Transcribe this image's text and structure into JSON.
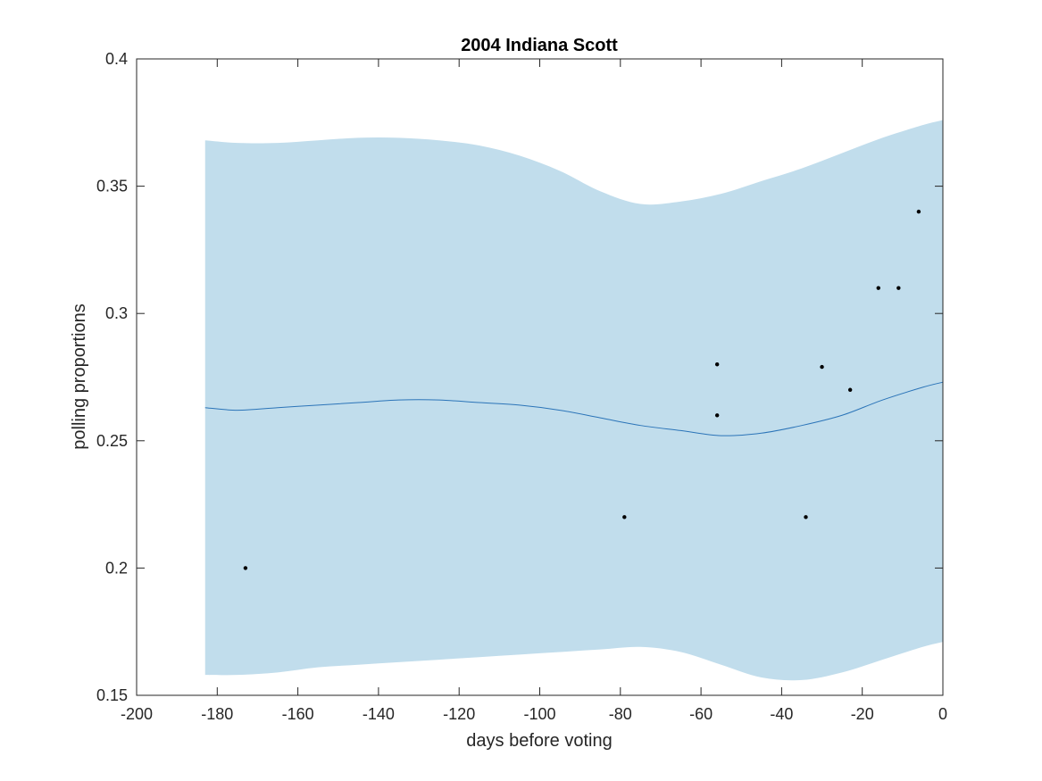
{
  "chart_data": {
    "type": "line",
    "title": "2004 Indiana Scott",
    "xlabel": "days before voting",
    "ylabel": "polling proportions",
    "xlim": [
      -200,
      0
    ],
    "ylim": [
      0.15,
      0.4
    ],
    "xticks": [
      -200,
      -180,
      -160,
      -140,
      -120,
      -100,
      -80,
      -60,
      -40,
      -20,
      0
    ],
    "yticks": [
      0.15,
      0.2,
      0.25,
      0.3,
      0.35,
      0.4
    ],
    "xtick_labels": [
      "-200",
      "-180",
      "-160",
      "-140",
      "-120",
      "-100",
      "-80",
      "-60",
      "-40",
      "-20",
      "0"
    ],
    "ytick_labels": [
      "0.15",
      "0.2",
      "0.25",
      "0.3",
      "0.35",
      "0.4"
    ],
    "grid": false,
    "colors": {
      "band": "#c1ddec",
      "line": "#2b74b8",
      "points": "#000000",
      "axes": "#262626"
    },
    "series": [
      {
        "type": "area_band",
        "x": [
          -183,
          -175,
          -165,
          -155,
          -145,
          -135,
          -125,
          -115,
          -105,
          -95,
          -85,
          -75,
          -65,
          -55,
          -45,
          -35,
          -25,
          -15,
          -5,
          0
        ],
        "upper": [
          0.368,
          0.367,
          0.367,
          0.368,
          0.369,
          0.369,
          0.368,
          0.366,
          0.362,
          0.356,
          0.348,
          0.343,
          0.344,
          0.347,
          0.352,
          0.357,
          0.363,
          0.369,
          0.374,
          0.376
        ],
        "lower": [
          0.158,
          0.158,
          0.159,
          0.161,
          0.162,
          0.163,
          0.164,
          0.165,
          0.166,
          0.167,
          0.168,
          0.169,
          0.167,
          0.162,
          0.157,
          0.156,
          0.159,
          0.164,
          0.169,
          0.171
        ]
      },
      {
        "type": "line",
        "x": [
          -183,
          -175,
          -165,
          -155,
          -145,
          -135,
          -125,
          -115,
          -105,
          -95,
          -85,
          -75,
          -65,
          -55,
          -45,
          -35,
          -25,
          -15,
          -5,
          0
        ],
        "y": [
          0.263,
          0.262,
          0.263,
          0.264,
          0.265,
          0.266,
          0.266,
          0.265,
          0.264,
          0.262,
          0.259,
          0.256,
          0.254,
          0.252,
          0.253,
          0.256,
          0.26,
          0.266,
          0.271,
          0.273
        ]
      },
      {
        "type": "scatter",
        "x": [
          -173,
          -79,
          -56,
          -56,
          -34,
          -30,
          -23,
          -16,
          -11,
          -6
        ],
        "y": [
          0.2,
          0.22,
          0.28,
          0.26,
          0.22,
          0.279,
          0.27,
          0.31,
          0.31,
          0.34
        ]
      }
    ]
  }
}
